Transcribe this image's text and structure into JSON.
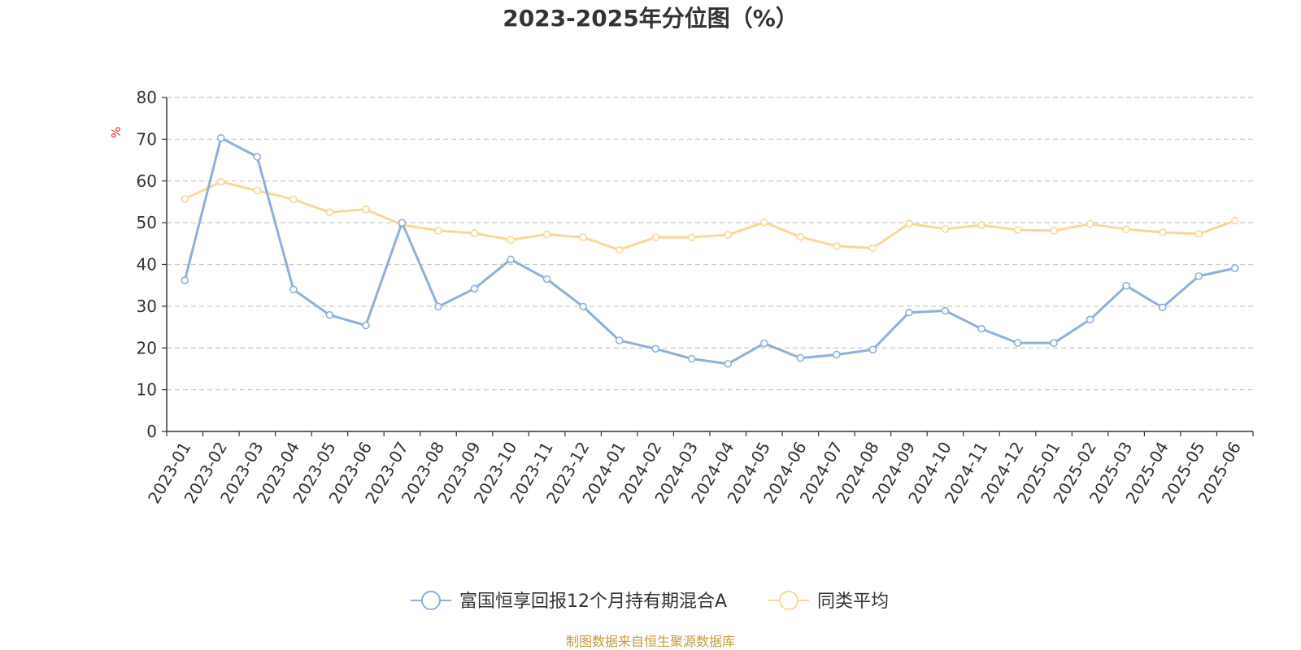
{
  "chart_data": {
    "type": "line",
    "title": "2023-2025年分位图（%）",
    "ylabel": "%",
    "xlabel": "",
    "ylim": [
      0,
      80
    ],
    "yticks": [
      0,
      10,
      20,
      30,
      40,
      50,
      60,
      70,
      80
    ],
    "grid": true,
    "legend_position": "bottom",
    "categories": [
      "2023-01",
      "2023-02",
      "2023-03",
      "2023-04",
      "2023-05",
      "2023-06",
      "2023-07",
      "2023-08",
      "2023-09",
      "2023-10",
      "2023-11",
      "2023-12",
      "2024-01",
      "2024-02",
      "2024-03",
      "2024-04",
      "2024-05",
      "2024-06",
      "2024-07",
      "2024-08",
      "2024-09",
      "2024-10",
      "2024-11",
      "2024-12",
      "2025-01",
      "2025-02",
      "2025-03",
      "2025-04",
      "2025-05",
      "2025-06"
    ],
    "series": [
      {
        "name": "富国恒享回报12个月持有期混合A",
        "color": "#8eb0db",
        "values": [
          36.2,
          70.3,
          65.8,
          34.0,
          27.9,
          25.4,
          50.0,
          29.9,
          34.2,
          41.2,
          36.5,
          29.9,
          21.8,
          19.8,
          17.4,
          16.2,
          21.1,
          17.6,
          18.4,
          19.6,
          28.5,
          28.9,
          24.6,
          21.2,
          21.2,
          26.8,
          34.9,
          29.7,
          37.2,
          39.1
        ]
      },
      {
        "name": "同类平均",
        "color": "#fad796",
        "values": [
          55.7,
          59.8,
          57.7,
          55.6,
          52.5,
          53.2,
          49.5,
          48.1,
          47.5,
          45.9,
          47.2,
          46.5,
          43.5,
          46.5,
          46.5,
          47.1,
          50.1,
          46.6,
          44.4,
          43.9,
          49.8,
          48.5,
          49.4,
          48.3,
          48.1,
          49.7,
          48.4,
          47.7,
          47.3,
          50.5
        ]
      }
    ]
  },
  "colors": {
    "axis": "#333333",
    "grid": "#cccccc",
    "ylabel": "#e8212b",
    "source": "#c59a3e"
  },
  "footer": {
    "source": "制图数据来自恒生聚源数据库"
  }
}
